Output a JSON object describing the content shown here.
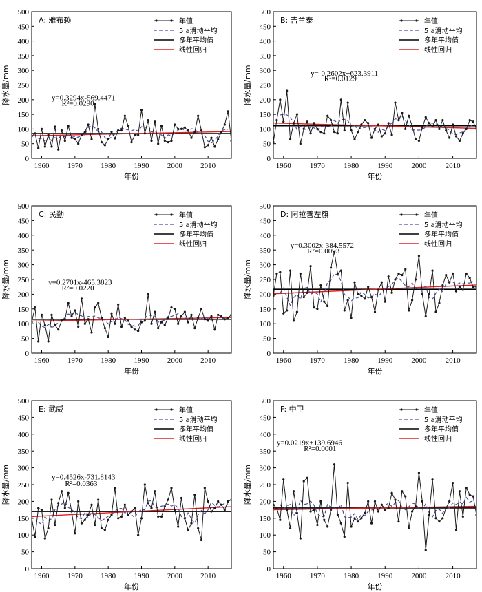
{
  "chart_data": [
    {
      "type": "line",
      "title": "A: 雅布赖",
      "xlabel": "年份",
      "ylabel": "降水量/mm",
      "xlim": [
        1957,
        2017
      ],
      "ylim": [
        0,
        500
      ],
      "xticks": [
        "1960",
        "1970",
        "1980",
        "1990",
        "2000",
        "2010"
      ],
      "yticks": [
        "0",
        "50",
        "100",
        "150",
        "200",
        "250",
        "300",
        "350",
        "400",
        "450",
        "500"
      ],
      "legend": [
        "年值",
        "5 a滑动平均",
        "多年平均值",
        "线性回归"
      ],
      "equation": "y=0.3294x-569.4471",
      "r2": "R²=0.0290",
      "eq_pos": [
        1963,
        198
      ],
      "r2_pos": [
        1966,
        180
      ],
      "x_start": 1957,
      "values": [
        75,
        85,
        35,
        100,
        40,
        80,
        40,
        108,
        30,
        95,
        60,
        110,
        70,
        65,
        50,
        80,
        90,
        115,
        65,
        185,
        100,
        55,
        45,
        65,
        90,
        68,
        95,
        95,
        145,
        110,
        55,
        80,
        80,
        165,
        85,
        130,
        60,
        125,
        50,
        110,
        60,
        55,
        60,
        115,
        100,
        100,
        105,
        95,
        70,
        90,
        145,
        95,
        38,
        45,
        70,
        40,
        65,
        90,
        115,
        160,
        60,
        70
      ]
    },
    {
      "type": "line",
      "title": "B: 吉兰泰",
      "xlabel": "年份",
      "ylabel": "降水量/mm",
      "xlim": [
        1957,
        2017
      ],
      "ylim": [
        0,
        500
      ],
      "xticks": [
        "1960",
        "1970",
        "1980",
        "1990",
        "2000",
        "2010"
      ],
      "yticks": [
        "0",
        "50",
        "100",
        "150",
        "200",
        "250",
        "300",
        "350",
        "400",
        "450",
        "500"
      ],
      "legend": [
        "年值",
        "5 a滑动平均",
        "多年平均值",
        "线性回归"
      ],
      "equation": "y=-0.2602x+623.3911",
      "r2": "R²=0.0129",
      "eq_pos": [
        1968,
        282
      ],
      "r2_pos": [
        1972,
        264
      ],
      "x_start": 1957,
      "values": [
        55,
        130,
        200,
        125,
        230,
        65,
        120,
        150,
        50,
        100,
        125,
        85,
        120,
        100,
        90,
        85,
        145,
        130,
        90,
        85,
        200,
        95,
        190,
        95,
        65,
        90,
        115,
        130,
        120,
        70,
        100,
        115,
        75,
        85,
        120,
        80,
        190,
        130,
        155,
        100,
        145,
        110,
        65,
        60,
        105,
        140,
        120,
        110,
        130,
        100,
        130,
        95,
        70,
        115,
        75,
        60,
        85,
        100,
        130,
        125,
        100,
        120
      ]
    },
    {
      "type": "line",
      "title": "C: 民勤",
      "xlabel": "年份",
      "ylabel": "降水量/mm",
      "xlim": [
        1957,
        2017
      ],
      "ylim": [
        0,
        500
      ],
      "xticks": [
        "1960",
        "1970",
        "1980",
        "1990",
        "2000",
        "2010"
      ],
      "yticks": [
        "0",
        "50",
        "100",
        "150",
        "200",
        "250",
        "300",
        "350",
        "400",
        "450",
        "500"
      ],
      "legend": [
        "年值",
        "5 a滑动平均",
        "多年平均值",
        "线性回归"
      ],
      "equation": "y=0.2701x-465.3823",
      "r2": "R²=0.0220",
      "eq_pos": [
        1962,
        232
      ],
      "r2_pos": [
        1966,
        213
      ],
      "x_start": 1957,
      "values": [
        105,
        155,
        40,
        130,
        95,
        40,
        130,
        95,
        80,
        110,
        115,
        170,
        125,
        145,
        90,
        185,
        100,
        115,
        70,
        155,
        170,
        120,
        85,
        55,
        135,
        100,
        165,
        90,
        120,
        110,
        90,
        80,
        75,
        105,
        110,
        200,
        100,
        140,
        85,
        105,
        95,
        120,
        155,
        150,
        100,
        125,
        140,
        105,
        130,
        85,
        120,
        150,
        115,
        110,
        125,
        80,
        130,
        125,
        115,
        120,
        130,
        115
      ]
    },
    {
      "type": "line",
      "title": "D: 阿拉善左旗",
      "xlabel": "年份",
      "ylabel": "降水量/mm",
      "xlim": [
        1957,
        2017
      ],
      "ylim": [
        0,
        500
      ],
      "xticks": [
        "1960",
        "1970",
        "1980",
        "1990",
        "2000",
        "2010"
      ],
      "yticks": [
        "0",
        "50",
        "100",
        "150",
        "200",
        "250",
        "300",
        "350",
        "400",
        "450",
        "500"
      ],
      "legend": [
        "年值",
        "5 a滑动平均",
        "多年平均值",
        "线性回归"
      ],
      "equation": "y=0.3002x-384.5572",
      "r2": "R²=0.0093",
      "eq_pos": [
        1962,
        357
      ],
      "r2_pos": [
        1967,
        339
      ],
      "x_start": 1957,
      "values": [
        195,
        270,
        275,
        135,
        145,
        280,
        110,
        140,
        270,
        190,
        205,
        295,
        155,
        150,
        230,
        175,
        160,
        290,
        345,
        270,
        280,
        145,
        180,
        120,
        240,
        200,
        195,
        185,
        225,
        190,
        140,
        215,
        240,
        175,
        260,
        205,
        250,
        270,
        265,
        285,
        145,
        180,
        250,
        330,
        200,
        125,
        200,
        280,
        140,
        170,
        230,
        265,
        240,
        270,
        210,
        225,
        215,
        270,
        255,
        225,
        225,
        240
      ]
    },
    {
      "type": "line",
      "title": "E: 武威",
      "xlabel": "年份",
      "ylabel": "降水量/mm",
      "xlim": [
        1957,
        2017
      ],
      "ylim": [
        0,
        500
      ],
      "xticks": [
        "1960",
        "1970",
        "1980",
        "1990",
        "2000",
        "2010"
      ],
      "yticks": [
        "0",
        "50",
        "100",
        "150",
        "200",
        "250",
        "300",
        "350",
        "400",
        "450",
        "500"
      ],
      "legend": [
        "年值",
        "5 a滑动平均",
        "多年平均值",
        "线性回归"
      ],
      "equation": "y=0.4526x-731.8143",
      "r2": "R²=0.0363",
      "eq_pos": [
        1963,
        265
      ],
      "r2_pos": [
        1967,
        246
      ],
      "x_start": 1957,
      "values": [
        150,
        95,
        180,
        175,
        90,
        120,
        205,
        130,
        195,
        230,
        180,
        225,
        170,
        105,
        200,
        135,
        145,
        160,
        190,
        130,
        205,
        120,
        115,
        145,
        160,
        240,
        150,
        155,
        190,
        160,
        170,
        180,
        100,
        150,
        250,
        195,
        180,
        230,
        155,
        155,
        185,
        205,
        240,
        175,
        125,
        210,
        150,
        115,
        135,
        220,
        120,
        85,
        240,
        200,
        170,
        180,
        200,
        190,
        175,
        200,
        205,
        190
      ]
    },
    {
      "type": "line",
      "title": "F: 中卫",
      "xlabel": "年份",
      "ylabel": "降水量/mm",
      "xlim": [
        1957,
        2017
      ],
      "ylim": [
        0,
        500
      ],
      "xticks": [
        "1960",
        "1970",
        "1980",
        "1990",
        "2000",
        "2010"
      ],
      "yticks": [
        "0",
        "50",
        "100",
        "150",
        "200",
        "250",
        "300",
        "350",
        "400",
        "450",
        "500"
      ],
      "legend": [
        "年值",
        "5 a滑动平均",
        "多年平均值",
        "线性回归"
      ],
      "equation": "y=0.0219x+139.6946",
      "r2": "R²=0.0001",
      "eq_pos": [
        1958,
        368
      ],
      "r2_pos": [
        1966,
        350
      ],
      "x_start": 1957,
      "values": [
        190,
        180,
        145,
        265,
        175,
        120,
        230,
        165,
        90,
        260,
        270,
        170,
        175,
        130,
        200,
        145,
        125,
        175,
        310,
        160,
        135,
        95,
        255,
        125,
        150,
        140,
        150,
        165,
        200,
        135,
        200,
        170,
        190,
        175,
        180,
        225,
        205,
        140,
        230,
        215,
        120,
        170,
        185,
        285,
        200,
        55,
        160,
        265,
        150,
        140,
        150,
        180,
        200,
        255,
        115,
        230,
        155,
        240,
        220,
        215,
        160,
        175
      ]
    }
  ],
  "colors": {
    "annual": "#1a1a1a",
    "moving_avg": "#4d4d9e",
    "mean": "#000000",
    "regression": "#e02020"
  }
}
